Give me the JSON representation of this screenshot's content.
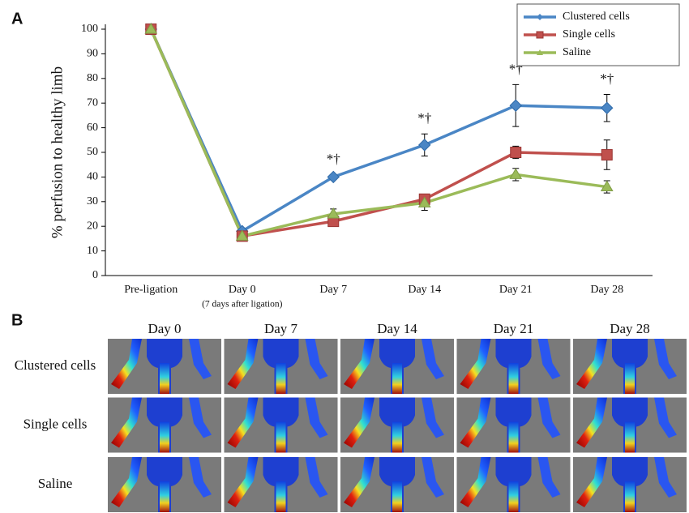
{
  "panel_labels": [
    "A",
    "B"
  ],
  "chart_data": {
    "type": "line",
    "ylabel": "% perfusion to healthy limb",
    "categories": [
      "Pre-ligation",
      "Day 0",
      "Day 7",
      "Day 14",
      "Day 21",
      "Day 28"
    ],
    "category_sublabels": [
      null,
      "(7 days after ligation)",
      null,
      null,
      null,
      null
    ],
    "significance_labels": [
      null,
      null,
      "*†",
      "*†",
      "*†",
      "*†"
    ],
    "series": [
      {
        "name": "Clustered cells",
        "color": "#4a86c5",
        "marker": "diamond",
        "values": [
          100,
          18,
          40,
          53,
          69,
          68
        ],
        "errors": [
          null,
          1,
          1,
          4.5,
          8.5,
          5.5
        ]
      },
      {
        "name": "Single cells",
        "color": "#c0504d",
        "marker": "square",
        "values": [
          100,
          16,
          22,
          31,
          50,
          49
        ],
        "errors": [
          null,
          1,
          1,
          1,
          2.5,
          6
        ]
      },
      {
        "name": "Saline",
        "color": "#9bbb59",
        "marker": "triangle",
        "values": [
          100,
          16,
          25,
          29.5,
          41,
          36
        ],
        "errors": [
          null,
          1,
          2,
          3,
          2.5,
          2.5
        ]
      }
    ],
    "ylim": [
      0,
      100
    ],
    "yticks": [
      0,
      10,
      20,
      30,
      40,
      50,
      60,
      70,
      80,
      90,
      100
    ],
    "grid": false,
    "legend": "top-right"
  },
  "image_grid": {
    "columns": [
      "Day 0",
      "Day 7",
      "Day 14",
      "Day 21",
      "Day 28"
    ],
    "rows": [
      "Clustered cells",
      "Single cells",
      "Saline"
    ]
  }
}
